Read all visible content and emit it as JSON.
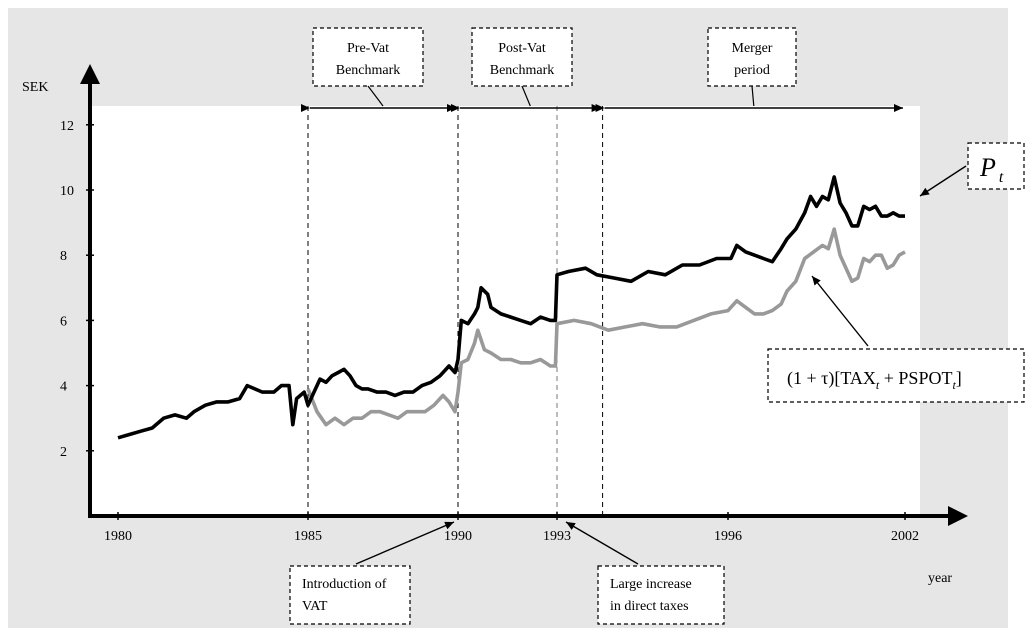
{
  "chart_data": {
    "type": "line",
    "ylabel": "SEK",
    "xlabel": "year",
    "yticks": [
      2,
      4,
      6,
      8,
      10,
      12
    ],
    "xticks": [
      1980,
      1985,
      1990,
      1993,
      1996,
      2002
    ],
    "xlim": [
      1980,
      2002
    ],
    "ylim": [
      0,
      13
    ],
    "grid": false,
    "colors": {
      "black_series": "#000000",
      "gray_series": "#999999",
      "panel": "#e6e6e6"
    },
    "series": [
      {
        "label_text": "P",
        "label_sub": "t",
        "color": "#000000",
        "points": [
          [
            1980.0,
            2.4
          ],
          [
            1980.3,
            2.5
          ],
          [
            1980.6,
            2.6
          ],
          [
            1980.9,
            2.7
          ],
          [
            1981.2,
            3.0
          ],
          [
            1981.5,
            3.1
          ],
          [
            1981.8,
            3.0
          ],
          [
            1982.0,
            3.2
          ],
          [
            1982.3,
            3.4
          ],
          [
            1982.6,
            3.5
          ],
          [
            1982.9,
            3.5
          ],
          [
            1983.2,
            3.6
          ],
          [
            1983.4,
            4.0
          ],
          [
            1983.6,
            3.9
          ],
          [
            1983.8,
            3.8
          ],
          [
            1984.1,
            3.8
          ],
          [
            1984.3,
            4.0
          ],
          [
            1984.5,
            4.0
          ],
          [
            1984.6,
            2.8
          ],
          [
            1984.7,
            3.6
          ],
          [
            1984.9,
            3.8
          ],
          [
            1985.0,
            3.4
          ],
          [
            1985.2,
            3.8
          ],
          [
            1985.4,
            4.2
          ],
          [
            1985.6,
            4.1
          ],
          [
            1985.8,
            4.3
          ],
          [
            1986.0,
            4.4
          ],
          [
            1986.2,
            4.5
          ],
          [
            1986.4,
            4.3
          ],
          [
            1986.6,
            4.0
          ],
          [
            1986.8,
            3.9
          ],
          [
            1987.0,
            3.9
          ],
          [
            1987.3,
            3.8
          ],
          [
            1987.6,
            3.8
          ],
          [
            1987.9,
            3.7
          ],
          [
            1988.2,
            3.8
          ],
          [
            1988.5,
            3.8
          ],
          [
            1988.8,
            4.0
          ],
          [
            1989.1,
            4.1
          ],
          [
            1989.4,
            4.3
          ],
          [
            1989.7,
            4.6
          ],
          [
            1989.9,
            4.4
          ],
          [
            1990.0,
            4.8
          ],
          [
            1990.1,
            6.0
          ],
          [
            1990.3,
            5.9
          ],
          [
            1990.5,
            6.2
          ],
          [
            1990.6,
            6.4
          ],
          [
            1990.7,
            7.0
          ],
          [
            1990.9,
            6.8
          ],
          [
            1991.0,
            6.4
          ],
          [
            1991.3,
            6.2
          ],
          [
            1991.6,
            6.1
          ],
          [
            1991.9,
            6.0
          ],
          [
            1992.2,
            5.9
          ],
          [
            1992.5,
            6.1
          ],
          [
            1992.8,
            6.0
          ],
          [
            1992.95,
            6.0
          ],
          [
            1993.0,
            7.4
          ],
          [
            1993.2,
            7.5
          ],
          [
            1993.5,
            7.6
          ],
          [
            1993.7,
            7.4
          ],
          [
            1994.0,
            7.3
          ],
          [
            1994.3,
            7.2
          ],
          [
            1994.6,
            7.5
          ],
          [
            1994.9,
            7.4
          ],
          [
            1995.2,
            7.7
          ],
          [
            1995.5,
            7.7
          ],
          [
            1995.8,
            7.9
          ],
          [
            1996.1,
            7.9
          ],
          [
            1996.3,
            8.3
          ],
          [
            1996.6,
            8.1
          ],
          [
            1996.9,
            8.0
          ],
          [
            1997.2,
            7.9
          ],
          [
            1997.5,
            7.8
          ],
          [
            1997.8,
            8.2
          ],
          [
            1998.0,
            8.5
          ],
          [
            1998.3,
            8.8
          ],
          [
            1998.6,
            9.3
          ],
          [
            1998.8,
            9.8
          ],
          [
            1999.0,
            9.5
          ],
          [
            1999.2,
            9.8
          ],
          [
            1999.4,
            9.7
          ],
          [
            1999.6,
            10.4
          ],
          [
            1999.8,
            9.6
          ],
          [
            2000.0,
            9.3
          ],
          [
            2000.2,
            8.9
          ],
          [
            2000.4,
            8.9
          ],
          [
            2000.6,
            9.5
          ],
          [
            2000.8,
            9.4
          ],
          [
            2001.0,
            9.5
          ],
          [
            2001.2,
            9.2
          ],
          [
            2001.4,
            9.2
          ],
          [
            2001.6,
            9.3
          ],
          [
            2001.8,
            9.2
          ],
          [
            2002.0,
            9.2
          ]
        ]
      },
      {
        "label_text": "(1 + τ)[TAX",
        "label_mid": " + PSPOT",
        "label_end": "]",
        "label_sub": "t",
        "color": "#999999",
        "points": [
          [
            1985.0,
            3.9
          ],
          [
            1985.3,
            3.2
          ],
          [
            1985.6,
            2.8
          ],
          [
            1985.9,
            3.0
          ],
          [
            1986.2,
            2.8
          ],
          [
            1986.5,
            3.0
          ],
          [
            1986.8,
            3.0
          ],
          [
            1987.1,
            3.2
          ],
          [
            1987.4,
            3.2
          ],
          [
            1987.7,
            3.1
          ],
          [
            1988.0,
            3.0
          ],
          [
            1988.3,
            3.2
          ],
          [
            1988.6,
            3.2
          ],
          [
            1988.9,
            3.2
          ],
          [
            1989.2,
            3.4
          ],
          [
            1989.5,
            3.7
          ],
          [
            1989.7,
            3.5
          ],
          [
            1989.9,
            3.2
          ],
          [
            1990.0,
            3.8
          ],
          [
            1990.1,
            4.7
          ],
          [
            1990.3,
            4.8
          ],
          [
            1990.5,
            5.3
          ],
          [
            1990.6,
            5.7
          ],
          [
            1990.8,
            5.1
          ],
          [
            1991.0,
            5.0
          ],
          [
            1991.3,
            4.8
          ],
          [
            1991.6,
            4.8
          ],
          [
            1991.9,
            4.7
          ],
          [
            1992.2,
            4.7
          ],
          [
            1992.5,
            4.8
          ],
          [
            1992.8,
            4.6
          ],
          [
            1992.95,
            4.6
          ],
          [
            1993.0,
            5.9
          ],
          [
            1993.3,
            6.0
          ],
          [
            1993.6,
            5.9
          ],
          [
            1993.9,
            5.7
          ],
          [
            1994.2,
            5.8
          ],
          [
            1994.5,
            5.9
          ],
          [
            1994.8,
            5.8
          ],
          [
            1995.1,
            5.8
          ],
          [
            1995.4,
            6.0
          ],
          [
            1995.7,
            6.2
          ],
          [
            1996.0,
            6.3
          ],
          [
            1996.3,
            6.6
          ],
          [
            1996.6,
            6.4
          ],
          [
            1996.9,
            6.2
          ],
          [
            1997.2,
            6.2
          ],
          [
            1997.5,
            6.3
          ],
          [
            1997.8,
            6.5
          ],
          [
            1998.0,
            6.9
          ],
          [
            1998.3,
            7.2
          ],
          [
            1998.6,
            7.9
          ],
          [
            1998.9,
            8.1
          ],
          [
            1999.2,
            8.3
          ],
          [
            1999.4,
            8.2
          ],
          [
            1999.6,
            8.8
          ],
          [
            1999.8,
            8.0
          ],
          [
            2000.0,
            7.6
          ],
          [
            2000.2,
            7.2
          ],
          [
            2000.4,
            7.3
          ],
          [
            2000.6,
            7.9
          ],
          [
            2000.8,
            7.8
          ],
          [
            2001.0,
            8.0
          ],
          [
            2001.2,
            8.0
          ],
          [
            2001.4,
            7.6
          ],
          [
            2001.6,
            7.7
          ],
          [
            2001.8,
            8.0
          ],
          [
            2002.0,
            8.1
          ]
        ]
      }
    ],
    "periods": [
      {
        "from": 1985,
        "to": 1990,
        "label": [
          "Pre-Vat",
          "Benchmark"
        ]
      },
      {
        "from": 1990,
        "to": 1993.8,
        "label": [
          "Post-Vat",
          "Benchmark"
        ]
      },
      {
        "from": 1993.8,
        "to": 2002,
        "label": [
          "Merger",
          "period"
        ]
      }
    ],
    "annotations": [
      {
        "at": 1990,
        "label": [
          "Introduction of",
          "VAT"
        ]
      },
      {
        "at": 1993,
        "label": [
          "Large increase",
          "in direct taxes"
        ]
      }
    ]
  }
}
